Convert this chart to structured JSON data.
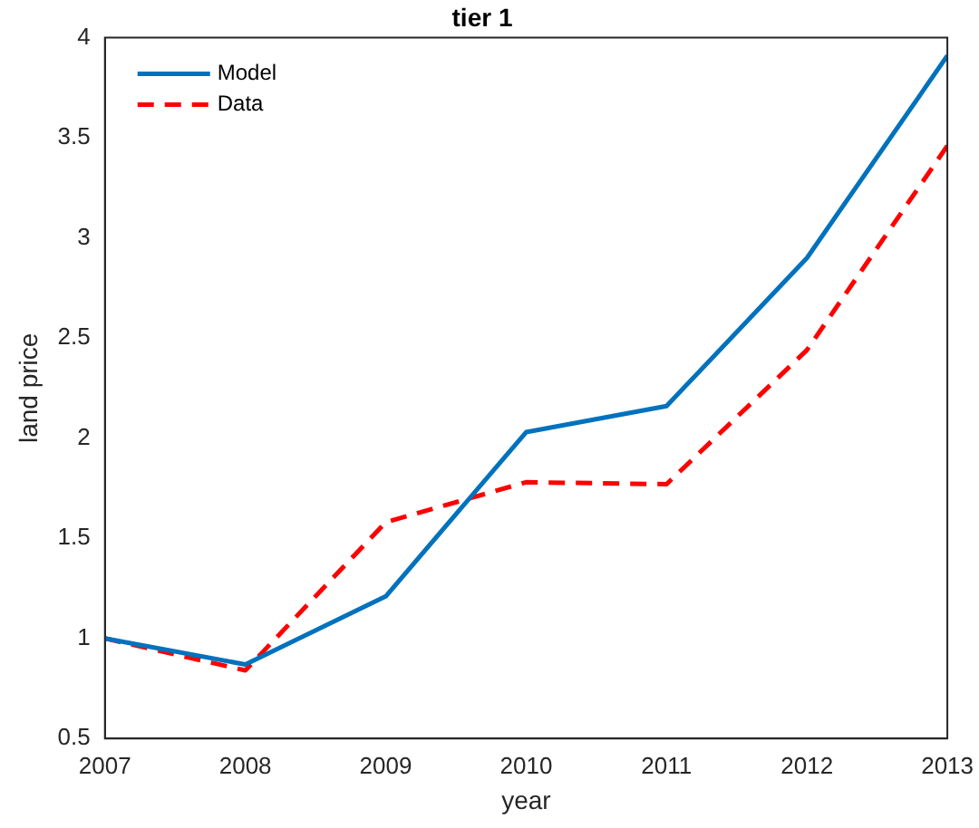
{
  "chart_data": {
    "type": "line",
    "title": "tier 1",
    "xlabel": "year",
    "ylabel": "land price",
    "x": [
      2007,
      2008,
      2009,
      2010,
      2011,
      2012,
      2013
    ],
    "series": [
      {
        "name": "Model",
        "color": "#0072bd",
        "line_style": "solid",
        "values": [
          1.0,
          0.87,
          1.21,
          2.03,
          2.16,
          2.9,
          3.91
        ]
      },
      {
        "name": "Data",
        "color": "#ff0000",
        "line_style": "dashed",
        "values": [
          1.0,
          0.84,
          1.58,
          1.78,
          1.77,
          2.44,
          3.46
        ]
      }
    ],
    "xlim": [
      2007,
      2013
    ],
    "xticks": [
      2007,
      2008,
      2009,
      2010,
      2011,
      2012,
      2013
    ],
    "ylim": [
      0.5,
      4
    ],
    "yticks": [
      0.5,
      1,
      1.5,
      2,
      2.5,
      3,
      3.5,
      4
    ],
    "grid": false,
    "legend": "top left",
    "marker": "none"
  }
}
